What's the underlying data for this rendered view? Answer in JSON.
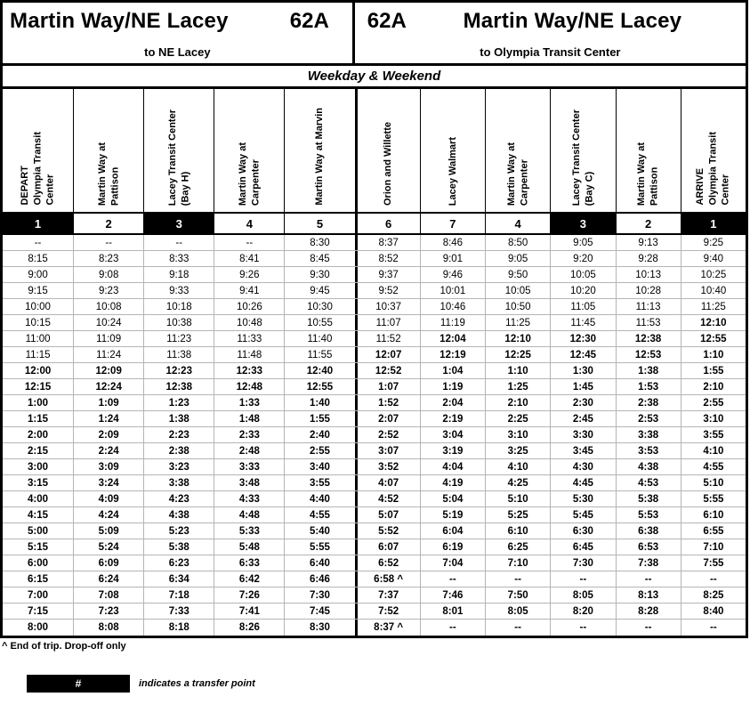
{
  "header": {
    "left": {
      "title": "Martin Way/NE Lacey",
      "route": "62A",
      "subtitle": "to NE Lacey"
    },
    "right": {
      "route": "62A",
      "title": "Martin Way/NE Lacey",
      "subtitle": "to Olympia Transit Center"
    }
  },
  "service_label": "Weekday & Weekend",
  "columns": [
    {
      "label": "DEPART\nOlympia Transit\nCenter",
      "stop": "1",
      "transfer": true
    },
    {
      "label": "Martin Way at\nPattison",
      "stop": "2",
      "transfer": false
    },
    {
      "label": "Lacey Transit Center\n(Bay H)",
      "stop": "3",
      "transfer": true
    },
    {
      "label": "Martin Way at\nCarpenter",
      "stop": "4",
      "transfer": false
    },
    {
      "label": "Martin Way at Marvin",
      "stop": "5",
      "transfer": false
    },
    {
      "label": "Orion and Willette",
      "stop": "6",
      "transfer": false
    },
    {
      "label": "Lacey Walmart",
      "stop": "7",
      "transfer": false
    },
    {
      "label": "Martin Way at\nCarpenter",
      "stop": "4",
      "transfer": false
    },
    {
      "label": "Lacey Transit Center\n(Bay C)",
      "stop": "3",
      "transfer": true
    },
    {
      "label": "Martin Way at\nPattison",
      "stop": "2",
      "transfer": false
    },
    {
      "label": "ARRIVE\nOlympia Transit\nCenter",
      "stop": "1",
      "transfer": true
    }
  ],
  "rows": [
    {
      "cells": [
        "--",
        "--",
        "--",
        "--",
        "8:30",
        "8:37",
        "8:46",
        "8:50",
        "9:05",
        "9:13",
        "9:25"
      ],
      "bold_from": 11
    },
    {
      "cells": [
        "8:15",
        "8:23",
        "8:33",
        "8:41",
        "8:45",
        "8:52",
        "9:01",
        "9:05",
        "9:20",
        "9:28",
        "9:40"
      ],
      "bold_from": 11
    },
    {
      "cells": [
        "9:00",
        "9:08",
        "9:18",
        "9:26",
        "9:30",
        "9:37",
        "9:46",
        "9:50",
        "10:05",
        "10:13",
        "10:25"
      ],
      "bold_from": 11
    },
    {
      "cells": [
        "9:15",
        "9:23",
        "9:33",
        "9:41",
        "9:45",
        "9:52",
        "10:01",
        "10:05",
        "10:20",
        "10:28",
        "10:40"
      ],
      "bold_from": 11
    },
    {
      "cells": [
        "10:00",
        "10:08",
        "10:18",
        "10:26",
        "10:30",
        "10:37",
        "10:46",
        "10:50",
        "11:05",
        "11:13",
        "11:25"
      ],
      "bold_from": 11
    },
    {
      "cells": [
        "10:15",
        "10:24",
        "10:38",
        "10:48",
        "10:55",
        "11:07",
        "11:19",
        "11:25",
        "11:45",
        "11:53",
        "12:10"
      ],
      "bold_from": 10
    },
    {
      "cells": [
        "11:00",
        "11:09",
        "11:23",
        "11:33",
        "11:40",
        "11:52",
        "12:04",
        "12:10",
        "12:30",
        "12:38",
        "12:55"
      ],
      "bold_from": 6
    },
    {
      "cells": [
        "11:15",
        "11:24",
        "11:38",
        "11:48",
        "11:55",
        "12:07",
        "12:19",
        "12:25",
        "12:45",
        "12:53",
        "1:10"
      ],
      "bold_from": 5
    },
    {
      "cells": [
        "12:00",
        "12:09",
        "12:23",
        "12:33",
        "12:40",
        "12:52",
        "1:04",
        "1:10",
        "1:30",
        "1:38",
        "1:55"
      ],
      "bold_from": 0
    },
    {
      "cells": [
        "12:15",
        "12:24",
        "12:38",
        "12:48",
        "12:55",
        "1:07",
        "1:19",
        "1:25",
        "1:45",
        "1:53",
        "2:10"
      ],
      "bold_from": 0
    },
    {
      "cells": [
        "1:00",
        "1:09",
        "1:23",
        "1:33",
        "1:40",
        "1:52",
        "2:04",
        "2:10",
        "2:30",
        "2:38",
        "2:55"
      ],
      "bold_from": 0
    },
    {
      "cells": [
        "1:15",
        "1:24",
        "1:38",
        "1:48",
        "1:55",
        "2:07",
        "2:19",
        "2:25",
        "2:45",
        "2:53",
        "3:10"
      ],
      "bold_from": 0
    },
    {
      "cells": [
        "2:00",
        "2:09",
        "2:23",
        "2:33",
        "2:40",
        "2:52",
        "3:04",
        "3:10",
        "3:30",
        "3:38",
        "3:55"
      ],
      "bold_from": 0
    },
    {
      "cells": [
        "2:15",
        "2:24",
        "2:38",
        "2:48",
        "2:55",
        "3:07",
        "3:19",
        "3:25",
        "3:45",
        "3:53",
        "4:10"
      ],
      "bold_from": 0
    },
    {
      "cells": [
        "3:00",
        "3:09",
        "3:23",
        "3:33",
        "3:40",
        "3:52",
        "4:04",
        "4:10",
        "4:30",
        "4:38",
        "4:55"
      ],
      "bold_from": 0
    },
    {
      "cells": [
        "3:15",
        "3:24",
        "3:38",
        "3:48",
        "3:55",
        "4:07",
        "4:19",
        "4:25",
        "4:45",
        "4:53",
        "5:10"
      ],
      "bold_from": 0
    },
    {
      "cells": [
        "4:00",
        "4:09",
        "4:23",
        "4:33",
        "4:40",
        "4:52",
        "5:04",
        "5:10",
        "5:30",
        "5:38",
        "5:55"
      ],
      "bold_from": 0
    },
    {
      "cells": [
        "4:15",
        "4:24",
        "4:38",
        "4:48",
        "4:55",
        "5:07",
        "5:19",
        "5:25",
        "5:45",
        "5:53",
        "6:10"
      ],
      "bold_from": 0
    },
    {
      "cells": [
        "5:00",
        "5:09",
        "5:23",
        "5:33",
        "5:40",
        "5:52",
        "6:04",
        "6:10",
        "6:30",
        "6:38",
        "6:55"
      ],
      "bold_from": 0
    },
    {
      "cells": [
        "5:15",
        "5:24",
        "5:38",
        "5:48",
        "5:55",
        "6:07",
        "6:19",
        "6:25",
        "6:45",
        "6:53",
        "7:10"
      ],
      "bold_from": 0
    },
    {
      "cells": [
        "6:00",
        "6:09",
        "6:23",
        "6:33",
        "6:40",
        "6:52",
        "7:04",
        "7:10",
        "7:30",
        "7:38",
        "7:55"
      ],
      "bold_from": 0
    },
    {
      "cells": [
        "6:15",
        "6:24",
        "6:34",
        "6:42",
        "6:46",
        "6:58 ^",
        "--",
        "--",
        "--",
        "--",
        "--"
      ],
      "bold_from": 0
    },
    {
      "cells": [
        "7:00",
        "7:08",
        "7:18",
        "7:26",
        "7:30",
        "7:37",
        "7:46",
        "7:50",
        "8:05",
        "8:13",
        "8:25"
      ],
      "bold_from": 0
    },
    {
      "cells": [
        "7:15",
        "7:23",
        "7:33",
        "7:41",
        "7:45",
        "7:52",
        "8:01",
        "8:05",
        "8:20",
        "8:28",
        "8:40"
      ],
      "bold_from": 0
    },
    {
      "cells": [
        "8:00",
        "8:08",
        "8:18",
        "8:26",
        "8:30",
        "8:37 ^",
        "--",
        "--",
        "--",
        "--",
        "--"
      ],
      "bold_from": 0
    }
  ],
  "footnote": "^ End of trip. Drop-off only",
  "legend": {
    "symbol": "#",
    "text": "indicates a transfer point"
  }
}
